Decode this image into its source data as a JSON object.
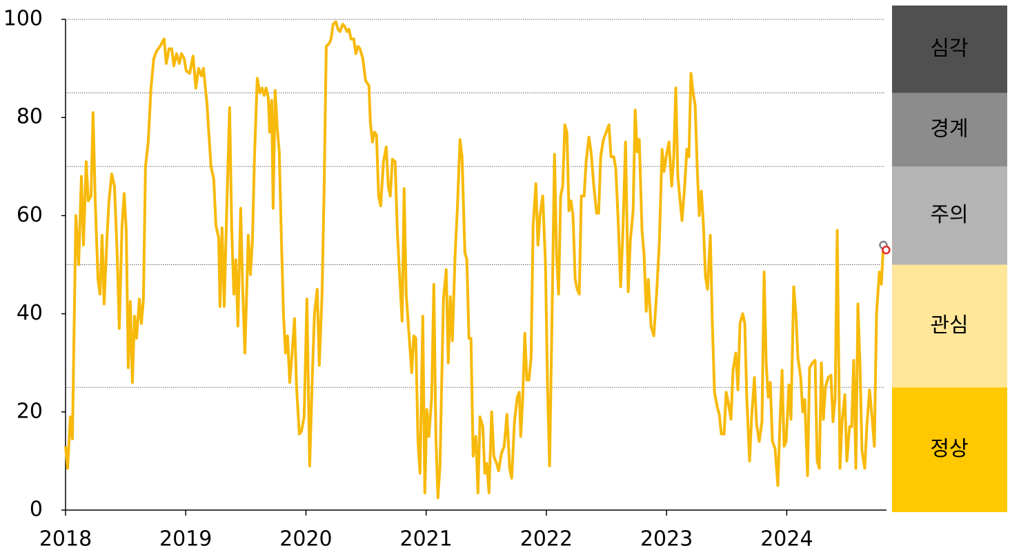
{
  "chart_data": {
    "type": "line",
    "xlim": [
      2018,
      2024.83
    ],
    "xticks": [
      2018,
      2019,
      2020,
      2021,
      2022,
      2023,
      2024
    ],
    "ylim": [
      0,
      100
    ],
    "yticks": [
      0,
      20,
      40,
      60,
      80,
      100
    ],
    "series": [
      {
        "color": "#f7b90a",
        "x": [
          2018.0,
          2018.017,
          2018.04,
          2018.057,
          2018.086,
          2018.109,
          2018.132,
          2018.149,
          2018.172,
          2018.189,
          2018.212,
          2018.229,
          2018.247,
          2018.27,
          2018.287,
          2018.304,
          2018.321,
          2018.344,
          2018.361,
          2018.384,
          2018.407,
          2018.43,
          2018.447,
          2018.47,
          2018.488,
          2018.505,
          2018.522,
          2018.539,
          2018.556,
          2018.574,
          2018.591,
          2018.614,
          2018.631,
          2018.648,
          2018.665,
          2018.688,
          2018.711,
          2018.734,
          2018.757,
          2018.786,
          2018.82,
          2018.838,
          2018.861,
          2018.884,
          2018.901,
          2018.924,
          2018.947,
          2018.964,
          2018.987,
          2019.004,
          2019.033,
          2019.061,
          2019.084,
          2019.107,
          2019.13,
          2019.147,
          2019.176,
          2019.21,
          2019.233,
          2019.251,
          2019.274,
          2019.285,
          2019.302,
          2019.32,
          2019.342,
          2019.365,
          2019.383,
          2019.4,
          2019.417,
          2019.434,
          2019.457,
          2019.474,
          2019.492,
          2019.509,
          2019.52,
          2019.538,
          2019.555,
          2019.572,
          2019.595,
          2019.618,
          2019.635,
          2019.652,
          2019.669,
          2019.687,
          2019.698,
          2019.715,
          2019.727,
          2019.744,
          2019.761,
          2019.778,
          2019.796,
          2019.813,
          2019.83,
          2019.847,
          2019.865,
          2019.882,
          2019.905,
          2019.922,
          2019.945,
          2019.962,
          2019.985,
          2020.008,
          2020.031,
          2020.054,
          2020.071,
          2020.094,
          2020.111,
          2020.134,
          2020.151,
          2020.169,
          2020.192,
          2020.209,
          2020.226,
          2020.249,
          2020.266,
          2020.283,
          2020.306,
          2020.324,
          2020.341,
          2020.358,
          2020.375,
          2020.398,
          2020.415,
          2020.433,
          2020.45,
          2020.473,
          2020.496,
          2020.524,
          2020.536,
          2020.553,
          2020.57,
          2020.587,
          2020.605,
          2020.622,
          2020.645,
          2020.668,
          2020.685,
          2020.702,
          2020.719,
          2020.742,
          2020.76,
          2020.777,
          2020.8,
          2020.817,
          2020.834,
          2020.857,
          2020.88,
          2020.897,
          2020.914,
          2020.932,
          2020.949,
          2020.972,
          2020.989,
          2021.006,
          2021.023,
          2021.046,
          2021.064,
          2021.081,
          2021.098,
          2021.115,
          2021.144,
          2021.167,
          2021.184,
          2021.201,
          2021.218,
          2021.241,
          2021.259,
          2021.282,
          2021.299,
          2021.322,
          2021.339,
          2021.356,
          2021.373,
          2021.391,
          2021.414,
          2021.431,
          2021.448,
          2021.471,
          2021.488,
          2021.505,
          2021.523,
          2021.545,
          2021.563,
          2021.586,
          2021.603,
          2021.626,
          2021.649,
          2021.672,
          2021.695,
          2021.712,
          2021.735,
          2021.758,
          2021.775,
          2021.787,
          2021.804,
          2021.821,
          2021.838,
          2021.855,
          2021.873,
          2021.89,
          2021.913,
          2021.93,
          2021.947,
          2021.97,
          2021.993,
          2022.01,
          2022.027,
          2022.045,
          2022.068,
          2022.085,
          2022.102,
          2022.119,
          2022.136,
          2022.154,
          2022.171,
          2022.188,
          2022.205,
          2022.222,
          2022.24,
          2022.257,
          2022.274,
          2022.291,
          2022.314,
          2022.331,
          2022.354,
          2022.372,
          2022.395,
          2022.418,
          2022.435,
          2022.452,
          2022.475,
          2022.498,
          2022.521,
          2022.538,
          2022.561,
          2022.578,
          2022.601,
          2022.618,
          2022.636,
          2022.659,
          2022.681,
          2022.699,
          2022.722,
          2022.739,
          2022.756,
          2022.773,
          2022.796,
          2022.813,
          2022.831,
          2022.848,
          2022.871,
          2022.894,
          2022.917,
          2022.94,
          2022.963,
          2022.98,
          2022.997,
          2023.02,
          2023.043,
          2023.06,
          2023.077,
          2023.094,
          2023.111,
          2023.129,
          2023.152,
          2023.169,
          2023.186,
          2023.203,
          2023.221,
          2023.238,
          2023.255,
          2023.272,
          2023.29,
          2023.307,
          2023.324,
          2023.341,
          2023.364,
          2023.381,
          2023.399,
          2023.422,
          2023.439,
          2023.456,
          2023.479,
          2023.496,
          2023.513,
          2023.536,
          2023.553,
          2023.576,
          2023.594,
          2023.611,
          2023.634,
          2023.651,
          2023.668,
          2023.691,
          2023.708,
          2023.731,
          2023.749,
          2023.771,
          2023.794,
          2023.812,
          2023.829,
          2023.846,
          2023.863,
          2023.881,
          2023.903,
          2023.926,
          2023.944,
          2023.961,
          2023.978,
          2023.995,
          2024.018,
          2024.035,
          2024.058,
          2024.076,
          2024.093,
          2024.116,
          2024.133,
          2024.15,
          2024.173,
          2024.19,
          2024.213,
          2024.236,
          2024.253,
          2024.271,
          2024.288,
          2024.305,
          2024.322,
          2024.345,
          2024.368,
          2024.385,
          2024.403,
          2024.42,
          2024.443,
          2024.46,
          2024.483,
          2024.5,
          2024.523,
          2024.54,
          2024.557,
          2024.575,
          2024.592,
          2024.609,
          2024.626,
          2024.649,
          2024.666,
          2024.689,
          2024.706,
          2024.729,
          2024.747,
          2024.77,
          2024.787,
          2024.804,
          2024.827
        ],
        "values": [
          13,
          8.5,
          19,
          14.5,
          60,
          50,
          68,
          54,
          71,
          63,
          64,
          81,
          63,
          47,
          44,
          56,
          42,
          55,
          63,
          68.5,
          66,
          52,
          37,
          58,
          64.5,
          57,
          29,
          42.5,
          26,
          39.5,
          35,
          43,
          38,
          43,
          70,
          75,
          86,
          92,
          93.5,
          94.5,
          96,
          91,
          94,
          94,
          90.5,
          93,
          91,
          93,
          92,
          89.5,
          89,
          92.5,
          86,
          90,
          88.5,
          90,
          83,
          70,
          67.5,
          58,
          55.5,
          41.5,
          57.5,
          41.5,
          62,
          82,
          57,
          44,
          51,
          37.5,
          61.5,
          45,
          32,
          46,
          56,
          48,
          55,
          72,
          88,
          85,
          86,
          84.5,
          86,
          84,
          77,
          83.5,
          61.5,
          85.5,
          78,
          73,
          55,
          40,
          32,
          35.5,
          26,
          31,
          39,
          25,
          15.5,
          16,
          19,
          43,
          9,
          28,
          40,
          45,
          29.5,
          44,
          65,
          94.5,
          95,
          96,
          99,
          99.5,
          98,
          97.5,
          99,
          98.5,
          97.5,
          98,
          96,
          96,
          93,
          94.5,
          94,
          92,
          87.5,
          86.5,
          79,
          75,
          77,
          76.5,
          64,
          62,
          71,
          74,
          66,
          64,
          71.5,
          71,
          57,
          49,
          38.5,
          65.5,
          44,
          36,
          28,
          35.5,
          35,
          14,
          7.5,
          39.5,
          3.5,
          20.5,
          15,
          23,
          46,
          15,
          2.5,
          9,
          43,
          49,
          30,
          43.5,
          34.5,
          52,
          61,
          75.5,
          72,
          52.5,
          51,
          35,
          35,
          11,
          15,
          3.5,
          19,
          17,
          7.5,
          9.5,
          3.5,
          20,
          11,
          9.5,
          8,
          11.5,
          13,
          19.5,
          8.5,
          6.5,
          18,
          23,
          24,
          15,
          23,
          36,
          26.5,
          26.5,
          31,
          58,
          66.5,
          54,
          60,
          64,
          50,
          25,
          9,
          36,
          72.5,
          52,
          44,
          64,
          66,
          78.5,
          77,
          61,
          63,
          60,
          47,
          45,
          44,
          64,
          64,
          71,
          76,
          73,
          66,
          60.5,
          60.5,
          72,
          75.5,
          77,
          78.5,
          72,
          72,
          69.5,
          57,
          45.5,
          56,
          75,
          44.5,
          55,
          61,
          81.5,
          73,
          75.5,
          57,
          52,
          40.5,
          47,
          37.5,
          35.5,
          44,
          54.5,
          73.5,
          69,
          72,
          75,
          66,
          72,
          86,
          68,
          63.5,
          59,
          66.5,
          73.5,
          72,
          89,
          85,
          82.5,
          70,
          60,
          65,
          58,
          47.5,
          45,
          56,
          38,
          24,
          21,
          19.5,
          15.5,
          15.5,
          24,
          22,
          18.5,
          28.5,
          32,
          24.5,
          38,
          40,
          38,
          22.5,
          10,
          19,
          27,
          17.5,
          14,
          18,
          48.5,
          30,
          23,
          26,
          14,
          12.5,
          5,
          18,
          28.5,
          13,
          14,
          25.5,
          18.5,
          45.5,
          40,
          31,
          27,
          20,
          22.5,
          7,
          29,
          30,
          30.5,
          10,
          8.5,
          30,
          18.5,
          25,
          27,
          27.5,
          18,
          23,
          57,
          8.5,
          18,
          23.5,
          10,
          17,
          17,
          30.5,
          8.5,
          42,
          30,
          12,
          8.5,
          17,
          24.5,
          20,
          13,
          40,
          48.5,
          46,
          54,
          53
        ],
        "end_marker_colors": [
          "#808080",
          "#e52a2a"
        ]
      }
    ],
    "zones": [
      {
        "label": "정상",
        "from": 0,
        "to": 25,
        "color": "#ffc800",
        "text_color": "#222222"
      },
      {
        "label": "관심",
        "from": 25,
        "to": 50,
        "color": "#ffe699",
        "text_color": "#222222"
      },
      {
        "label": "주의",
        "from": 50,
        "to": 70,
        "color": "#b4b4b4",
        "text_color": "#222222"
      },
      {
        "label": "경계",
        "from": 70,
        "to": 85,
        "color": "#8c8c8c",
        "text_color": "#ffffff"
      },
      {
        "label": "심각",
        "from": 85,
        "to": 100,
        "color": "#505050",
        "text_color": "#ffffff"
      }
    ]
  }
}
